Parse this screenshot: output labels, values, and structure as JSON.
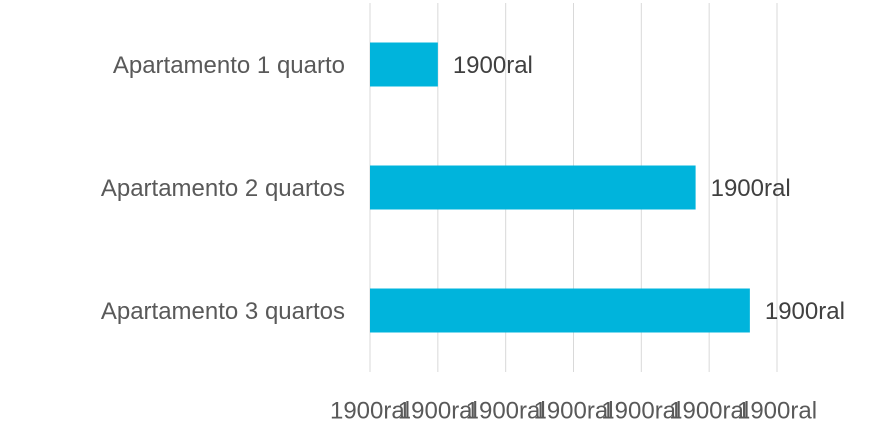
{
  "chart_data": {
    "type": "bar",
    "orientation": "horizontal",
    "categories": [
      "Apartamento 1 quarto",
      "Apartamento 2 quartos",
      "Apartamento 3 quartos"
    ],
    "values": [
      1,
      4.8,
      5.6
    ],
    "value_labels": [
      "1900ral",
      "1900ral",
      "1900ral"
    ],
    "color": "#00b4dc",
    "xlim": [
      0,
      6
    ],
    "xticks": [
      {
        "value": 0,
        "label": "1900ral"
      },
      {
        "value": 1,
        "label": "1900ral"
      },
      {
        "value": 2,
        "label": "1900ral"
      },
      {
        "value": 3,
        "label": "1900ral"
      },
      {
        "value": 4,
        "label": "1900ral"
      },
      {
        "value": 5,
        "label": "1900ral"
      },
      {
        "value": 6,
        "label": "1900ral"
      }
    ],
    "grid": true
  }
}
